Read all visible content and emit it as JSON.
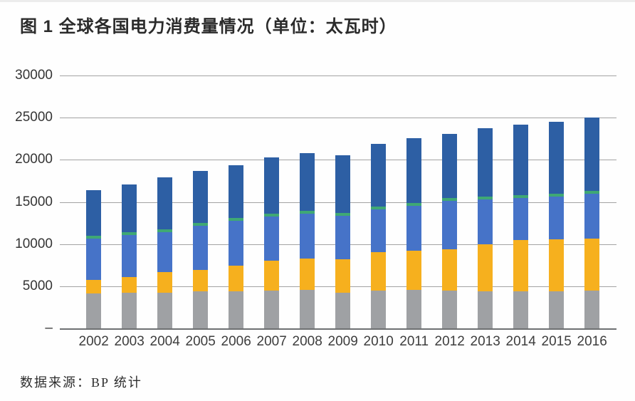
{
  "page": {
    "title": "图 1 全球各国电力消费量情况（单位：太瓦时）",
    "source": "数据来源：BP 统计"
  },
  "chart_data": {
    "type": "bar",
    "stacked": true,
    "title": "图 1 全球各国电力消费量情况（单位：太瓦时）",
    "unit": "太瓦时",
    "xlabel": "",
    "ylabel": "",
    "ylim": [
      0,
      30000
    ],
    "yticks": [
      0,
      5000,
      10000,
      15000,
      20000,
      25000,
      30000
    ],
    "ytick_labels": [
      "–",
      "5000",
      "10000",
      "15000",
      "20000",
      "25000",
      "30000"
    ],
    "grid": "horizontal",
    "legend": "none",
    "categories": [
      "2002",
      "2003",
      "2004",
      "2005",
      "2006",
      "2007",
      "2008",
      "2009",
      "2010",
      "2011",
      "2012",
      "2013",
      "2014",
      "2015",
      "2016"
    ],
    "series": [
      {
        "name": "segment-gray-bottom",
        "color": "#9fa1a4",
        "values": [
          4170,
          4220,
          4220,
          4420,
          4420,
          4500,
          4560,
          4220,
          4500,
          4560,
          4450,
          4420,
          4420,
          4420,
          4500
        ]
      },
      {
        "name": "segment-yellow",
        "color": "#f6b01e",
        "values": [
          1600,
          1890,
          2460,
          2480,
          3040,
          3530,
          3690,
          3940,
          4510,
          4650,
          4930,
          5580,
          6030,
          6130,
          6120
        ]
      },
      {
        "name": "segment-blue",
        "color": "#4673c8",
        "values": [
          4880,
          4960,
          4750,
          5240,
          5300,
          5260,
          5360,
          5220,
          5070,
          5290,
          5750,
          5290,
          4980,
          5080,
          5380
        ]
      },
      {
        "name": "segment-green",
        "color": "#3fa874",
        "values": [
          340,
          340,
          340,
          340,
          340,
          340,
          340,
          340,
          340,
          340,
          340,
          340,
          340,
          340,
          340
        ]
      },
      {
        "name": "segment-darkblue-top",
        "color": "#2d5fa4",
        "values": [
          5410,
          5690,
          6130,
          6200,
          6280,
          6650,
          6860,
          6780,
          7470,
          7690,
          7620,
          8080,
          8400,
          8530,
          8720
        ]
      }
    ],
    "totals": [
      16400,
      17100,
      17900,
      18680,
      19380,
      20280,
      20810,
      20500,
      21890,
      22530,
      23090,
      23710,
      24170,
      24500,
      25060
    ],
    "source_note": "数据来源：BP 统计"
  }
}
